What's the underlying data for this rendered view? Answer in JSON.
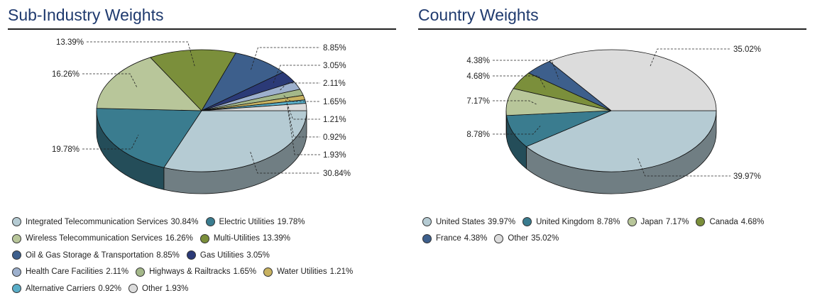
{
  "charts": {
    "sub_industry": {
      "title": "Sub-Industry Weights"
    },
    "country": {
      "title": "Country Weights"
    }
  },
  "chart_data": [
    {
      "type": "pie",
      "title": "Sub-Industry Weights",
      "slices": [
        {
          "label": "Integrated Telecommunication Services",
          "value": 30.84,
          "display": "30.84%",
          "color": "#b5cbd3"
        },
        {
          "label": "Electric Utilities",
          "value": 19.78,
          "display": "19.78%",
          "color": "#3a7c8f"
        },
        {
          "label": "Wireless Telecommunication Services",
          "value": 16.26,
          "display": "16.26%",
          "color": "#b8c69a"
        },
        {
          "label": "Multi-Utilities",
          "value": 13.39,
          "display": "13.39%",
          "color": "#7b8f3b"
        },
        {
          "label": "Oil & Gas Storage & Transportation",
          "value": 8.85,
          "display": "8.85%",
          "color": "#3d5f8c"
        },
        {
          "label": "Gas Utilities",
          "value": 3.05,
          "display": "3.05%",
          "color": "#2b3a77"
        },
        {
          "label": "Health Care Facilities",
          "value": 2.11,
          "display": "2.11%",
          "color": "#9db0cd"
        },
        {
          "label": "Highways & Railtracks",
          "value": 1.65,
          "display": "1.65%",
          "color": "#a4b88a"
        },
        {
          "label": "Water Utilities",
          "value": 1.21,
          "display": "1.21%",
          "color": "#c8b260"
        },
        {
          "label": "Alternative Carriers",
          "value": 0.92,
          "display": "0.92%",
          "color": "#5aaec8"
        },
        {
          "label": "Other",
          "value": 1.93,
          "display": "1.93%",
          "color": "#dcdcdc"
        }
      ],
      "legend_rows": [
        [
          0,
          1
        ],
        [
          2,
          3
        ],
        [
          4,
          5
        ],
        [
          6,
          7,
          8
        ],
        [
          9,
          10
        ]
      ]
    },
    {
      "type": "pie",
      "title": "Country Weights",
      "slices": [
        {
          "label": "United States",
          "value": 39.97,
          "display": "39.97%",
          "color": "#b5cbd3"
        },
        {
          "label": "United Kingdom",
          "value": 8.78,
          "display": "8.78%",
          "color": "#3a7c8f"
        },
        {
          "label": "Japan",
          "value": 7.17,
          "display": "7.17%",
          "color": "#b8c69a"
        },
        {
          "label": "Canada",
          "value": 4.68,
          "display": "4.68%",
          "color": "#7b8f3b"
        },
        {
          "label": "France",
          "value": 4.38,
          "display": "4.38%",
          "color": "#3d5f8c"
        },
        {
          "label": "Other",
          "value": 35.02,
          "display": "35.02%",
          "color": "#dcdcdc"
        }
      ],
      "legend_rows": [
        [
          0,
          1,
          2,
          3
        ],
        [
          4,
          5
        ]
      ]
    }
  ]
}
